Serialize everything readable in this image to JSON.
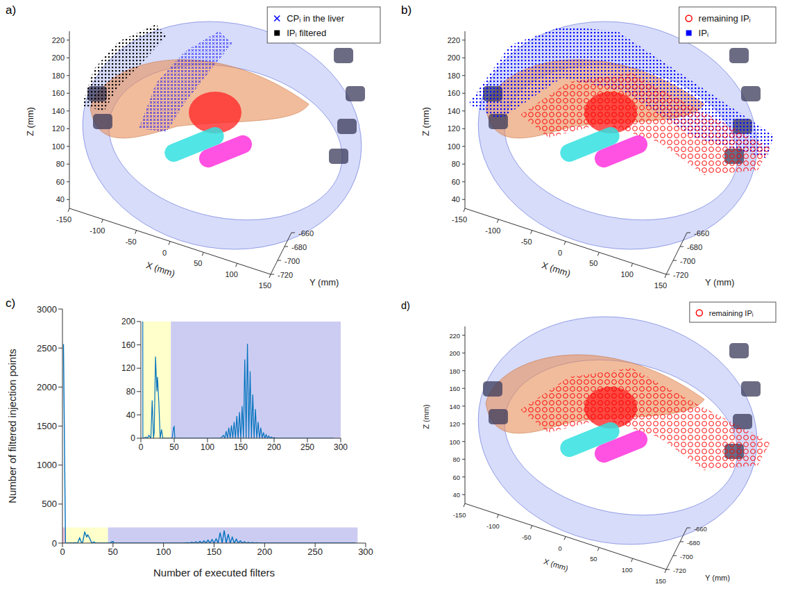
{
  "chart_data": [
    {
      "type": "scatter3d",
      "label": "a)",
      "xlabel": "X (mm)",
      "ylabel": "Y (mm)",
      "zlabel": "Z (mm)",
      "xlim": [
        -150,
        150
      ],
      "xticks": [
        -150,
        -100,
        -50,
        0,
        50,
        100,
        150
      ],
      "ylim": [
        -720,
        -660
      ],
      "yticks": [
        -720,
        -700,
        -680,
        -660
      ],
      "zlim": [
        30,
        230
      ],
      "zticks": [
        40,
        60,
        80,
        100,
        120,
        140,
        160,
        180,
        200,
        220
      ],
      "legend": "upper right",
      "series": [
        {
          "name": "CPᵢ in the liver",
          "color": "#0000ff",
          "marker": "x"
        },
        {
          "name": "IPᵢ filtered",
          "color": "#000000",
          "marker": "square"
        }
      ]
    },
    {
      "type": "scatter3d",
      "label": "b)",
      "xlabel": "X (mm)",
      "ylabel": "Y (mm)",
      "zlabel": "Z (mm)",
      "xlim": [
        -150,
        150
      ],
      "xticks": [
        -150,
        -100,
        -50,
        0,
        50,
        100,
        150
      ],
      "ylim": [
        -720,
        -660
      ],
      "yticks": [
        -720,
        -700,
        -680,
        -660
      ],
      "zlim": [
        30,
        230
      ],
      "zticks": [
        40,
        60,
        80,
        100,
        120,
        140,
        160,
        180,
        200,
        220
      ],
      "legend": "upper right",
      "series": [
        {
          "name": "remaining IPᵢ",
          "color": "#ff0000",
          "marker": "o"
        },
        {
          "name": "IPᵢ",
          "color": "#0000ff",
          "marker": "square"
        }
      ]
    },
    {
      "type": "line",
      "label": "c)",
      "xlabel": "Number of executed filters",
      "ylabel": "Number of filtered injection points",
      "xlim": [
        0,
        300
      ],
      "xticks": [
        0,
        50,
        100,
        150,
        200,
        250,
        300
      ],
      "ylim": [
        0,
        3000
      ],
      "yticks": [
        0,
        500,
        1000,
        1500,
        2000,
        2500,
        3000
      ],
      "color": "#0072bd",
      "x": [
        1,
        3,
        8,
        10,
        12,
        15,
        17,
        19,
        20,
        22,
        24,
        25,
        27,
        29,
        31,
        33,
        40,
        47,
        49,
        50,
        51,
        120,
        124,
        126,
        128,
        130,
        132,
        134,
        136,
        138,
        140,
        142,
        144,
        146,
        148,
        150,
        152,
        154,
        156,
        158,
        160,
        162,
        164,
        166,
        168,
        170,
        172,
        174,
        176,
        178,
        180,
        182,
        184,
        186,
        188,
        190,
        192,
        194,
        196,
        198,
        200,
        202,
        250,
        290
      ],
      "values": [
        2550,
        0,
        2,
        0,
        5,
        0,
        65,
        0,
        10,
        140,
        80,
        105,
        60,
        0,
        15,
        0,
        0,
        0,
        18,
        20,
        0,
        0,
        5,
        0,
        12,
        0,
        18,
        0,
        22,
        0,
        28,
        0,
        38,
        0,
        45,
        0,
        55,
        0,
        135,
        0,
        162,
        0,
        115,
        0,
        75,
        0,
        50,
        0,
        28,
        0,
        18,
        0,
        10,
        0,
        6,
        0,
        4,
        0,
        2,
        0,
        1,
        0,
        0,
        0
      ],
      "regions": [
        {
          "x": [
            0,
            3
          ],
          "y": [
            0,
            200
          ],
          "color": "#f2c4dc"
        },
        {
          "x": [
            3,
            45
          ],
          "y": [
            0,
            200
          ],
          "color": "#ffffcc"
        },
        {
          "x": [
            45,
            292
          ],
          "y": [
            0,
            200
          ],
          "color": "#ccccf2"
        }
      ],
      "inset": {
        "xlim": [
          0,
          300
        ],
        "xticks": [
          0,
          50,
          100,
          150,
          200,
          250,
          300
        ],
        "ylim": [
          0,
          200
        ],
        "yticks": [
          0,
          40,
          80,
          120,
          160,
          200
        ],
        "regions": [
          {
            "x": [
              3,
              45
            ],
            "y": [
              0,
              200
            ],
            "color": "#ffffcc"
          },
          {
            "x": [
              45,
              300
            ],
            "y": [
              0,
              200
            ],
            "color": "#ccccf2"
          }
        ]
      }
    },
    {
      "type": "scatter3d",
      "label": "d)",
      "xlabel": "X (mm)",
      "ylabel": "Y (mm)",
      "zlabel": "Z (mm)",
      "xlim": [
        -150,
        150
      ],
      "xticks": [
        -150,
        -100,
        -50,
        0,
        50,
        100,
        150
      ],
      "ylim": [
        -720,
        -660
      ],
      "yticks": [
        -720,
        -700,
        -680,
        -660
      ],
      "zlim": [
        30,
        230
      ],
      "zticks": [
        40,
        60,
        80,
        100,
        120,
        140,
        160,
        180,
        200,
        220
      ],
      "legend": "upper right",
      "series": [
        {
          "name": "remaining IPᵢ",
          "color": "#ff0000",
          "marker": "o"
        }
      ]
    }
  ]
}
